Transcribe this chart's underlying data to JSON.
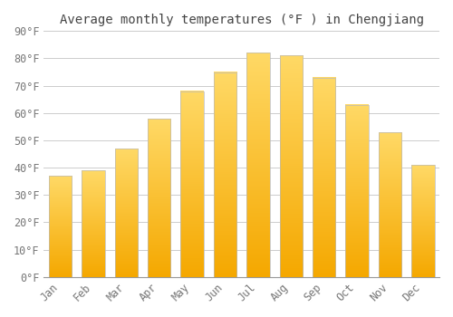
{
  "title": "Average monthly temperatures (°F ) in Chengjiang",
  "months": [
    "Jan",
    "Feb",
    "Mar",
    "Apr",
    "May",
    "Jun",
    "Jul",
    "Aug",
    "Sep",
    "Oct",
    "Nov",
    "Dec"
  ],
  "values": [
    37,
    39,
    47,
    58,
    68,
    75,
    82,
    81,
    73,
    63,
    53,
    41
  ],
  "bar_color_bottom": "#F5A800",
  "bar_color_top": "#FFD966",
  "ylim": [
    0,
    90
  ],
  "yticks": [
    0,
    10,
    20,
    30,
    40,
    50,
    60,
    70,
    80,
    90
  ],
  "ytick_labels": [
    "0°F",
    "10°F",
    "20°F",
    "30°F",
    "40°F",
    "50°F",
    "60°F",
    "70°F",
    "80°F",
    "90°F"
  ],
  "background_color": "#FFFFFF",
  "grid_color": "#CCCCCC",
  "title_fontsize": 10,
  "tick_fontsize": 8.5,
  "bar_edge_color": "#BBBBBB",
  "bar_edge_width": 0.5
}
